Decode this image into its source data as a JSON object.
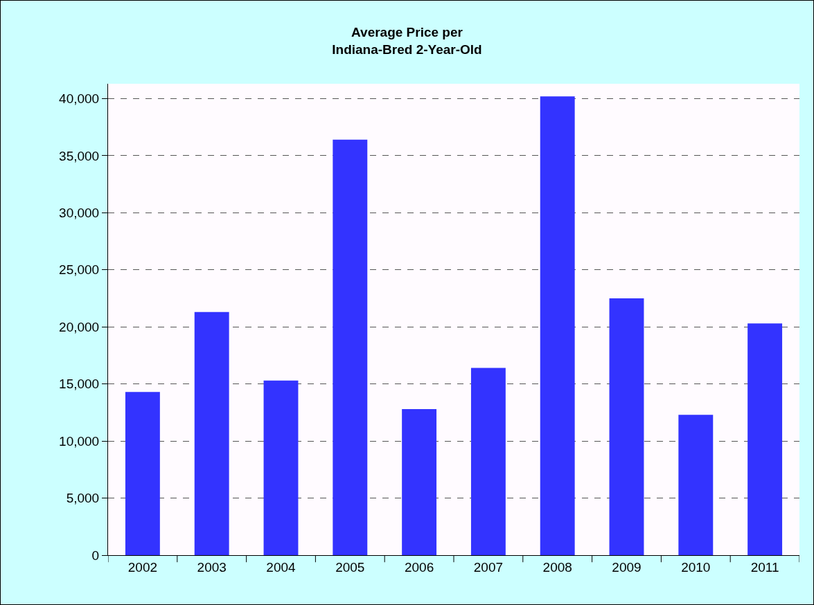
{
  "chart_data": {
    "type": "bar",
    "title": "Average Price per\nIndiana-Bred 2-Year-Old",
    "categories": [
      "2002",
      "2003",
      "2004",
      "2005",
      "2006",
      "2007",
      "2008",
      "2009",
      "2010",
      "2011"
    ],
    "values": [
      14300,
      21300,
      15300,
      36400,
      12800,
      16400,
      40200,
      22500,
      12300,
      20300
    ],
    "color": "#3333ff",
    "ylim": [
      0,
      41300
    ],
    "yticks": [
      {
        "value": 0,
        "label": "0"
      },
      {
        "value": 5000,
        "label": "5,000"
      },
      {
        "value": 10000,
        "label": "10,000"
      },
      {
        "value": 15000,
        "label": "15,000"
      },
      {
        "value": 20000,
        "label": "20,000"
      },
      {
        "value": 25000,
        "label": "25,000"
      },
      {
        "value": 30000,
        "label": "30,000"
      },
      {
        "value": 35000,
        "label": "35,000"
      },
      {
        "value": 40000,
        "label": "40,000"
      }
    ],
    "grid": "y"
  }
}
